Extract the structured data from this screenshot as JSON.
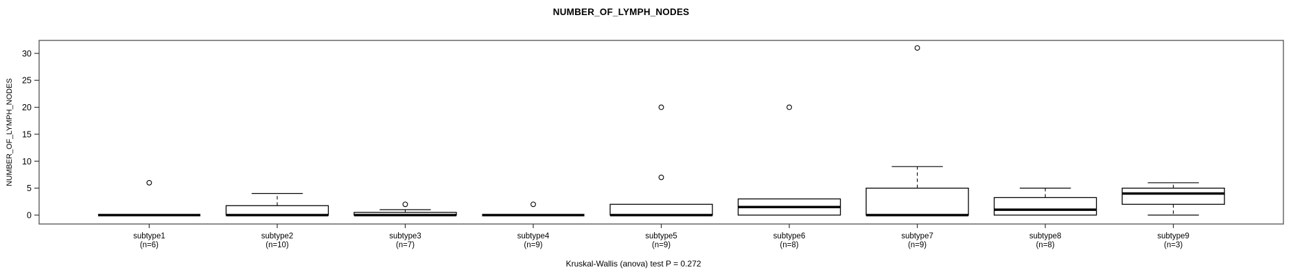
{
  "title": "NUMBER_OF_LYMPH_NODES",
  "chart_data": {
    "type": "boxplot",
    "title": "NUMBER_OF_LYMPH_NODES",
    "ylabel": "NUMBER_OF_LYMPH_NODES",
    "xlabel": "",
    "caption": "Kruskal-Wallis (anova) test P = 0.272",
    "grid": false,
    "yticks": [
      0,
      5,
      10,
      15,
      20,
      25,
      30
    ],
    "ylim": [
      -1.65,
      32.4
    ],
    "categories": [
      "subtype1",
      "subtype2",
      "subtype3",
      "subtype4",
      "subtype5",
      "subtype6",
      "subtype7",
      "subtype8",
      "subtype9"
    ],
    "sample_sizes": [
      6,
      10,
      7,
      9,
      9,
      8,
      9,
      8,
      3
    ],
    "sublabels": [
      "(n=6)",
      "(n=10)",
      "(n=7)",
      "(n=9)",
      "(n=9)",
      "(n=8)",
      "(n=9)",
      "(n=8)",
      "(n=3)"
    ],
    "boxes": [
      {
        "label": "subtype1",
        "n": 6,
        "lower_whisker": 0,
        "q1": 0,
        "median": 0,
        "q3": 0,
        "upper_whisker": 0,
        "outliers": [
          6
        ]
      },
      {
        "label": "subtype2",
        "n": 10,
        "lower_whisker": 0,
        "q1": 0,
        "median": 0,
        "q3": 1.75,
        "upper_whisker": 4,
        "outliers": []
      },
      {
        "label": "subtype3",
        "n": 7,
        "lower_whisker": 0,
        "q1": 0,
        "median": 0,
        "q3": 0.5,
        "upper_whisker": 1,
        "outliers": [
          2
        ]
      },
      {
        "label": "subtype4",
        "n": 9,
        "lower_whisker": 0,
        "q1": 0,
        "median": 0,
        "q3": 0,
        "upper_whisker": 0,
        "outliers": [
          2
        ]
      },
      {
        "label": "subtype5",
        "n": 9,
        "lower_whisker": 0,
        "q1": 0,
        "median": 0,
        "q3": 2,
        "upper_whisker": 2,
        "outliers": [
          7,
          20
        ]
      },
      {
        "label": "subtype6",
        "n": 8,
        "lower_whisker": 0,
        "q1": 0,
        "median": 1.5,
        "q3": 3,
        "upper_whisker": 3,
        "outliers": [
          20
        ]
      },
      {
        "label": "subtype7",
        "n": 9,
        "lower_whisker": 0,
        "q1": 0,
        "median": 0,
        "q3": 5,
        "upper_whisker": 9,
        "outliers": [
          31
        ]
      },
      {
        "label": "subtype8",
        "n": 8,
        "lower_whisker": 0,
        "q1": 0,
        "median": 1,
        "q3": 3.25,
        "upper_whisker": 5,
        "outliers": []
      },
      {
        "label": "subtype9",
        "n": 3,
        "lower_whisker": 0,
        "q1": 2,
        "median": 4,
        "q3": 5,
        "upper_whisker": 6,
        "outliers": []
      }
    ],
    "colors": {
      "box_stroke": "#000000",
      "box_fill": "#ffffff",
      "frame_stroke": "#666666",
      "text": "#000000"
    }
  }
}
